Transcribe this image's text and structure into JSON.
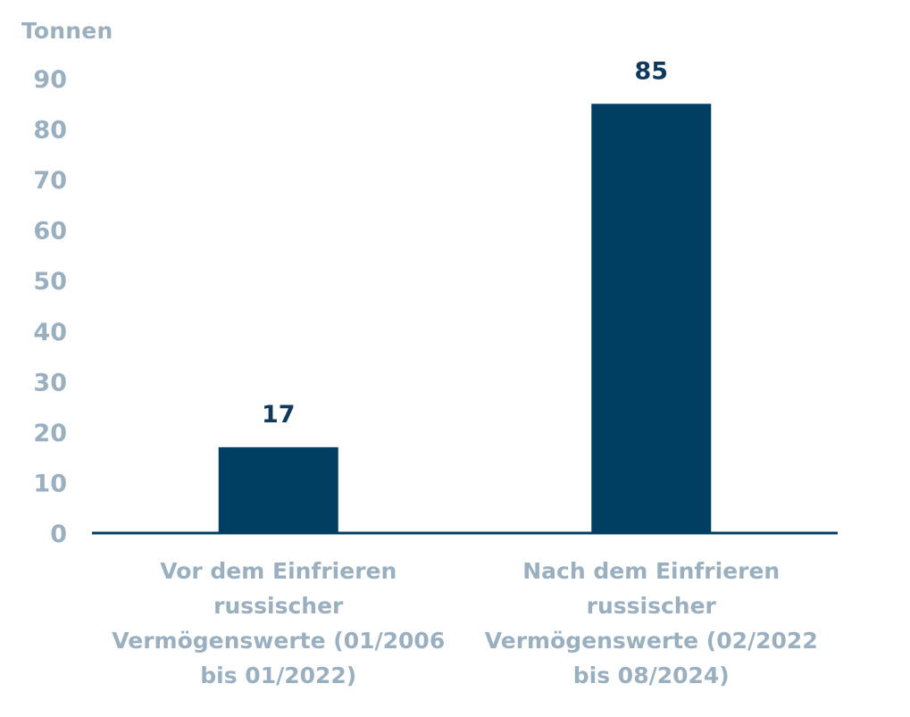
{
  "chart_data": {
    "type": "bar",
    "ylabel": "Tonnen",
    "ylim": [
      0,
      90
    ],
    "yticks": [
      "0",
      "10",
      "20",
      "30",
      "40",
      "50",
      "60",
      "70",
      "80",
      "90"
    ],
    "grid": false,
    "categories": [
      [
        "Vor dem Einfrieren",
        "russischer",
        "Vermögenswerte (01/2006",
        "bis 01/2022)"
      ],
      [
        "Nach dem Einfrieren",
        "russischer",
        "Vermögenswerte (02/2022",
        "bis 08/2024)"
      ]
    ],
    "values": [
      17,
      85
    ],
    "data_labels": [
      "17",
      "85"
    ],
    "colors": {
      "bar": "#003f62",
      "axis": "#003f62",
      "tick_text": "#9ab0c0",
      "data_label": "#0f3a5b"
    }
  }
}
